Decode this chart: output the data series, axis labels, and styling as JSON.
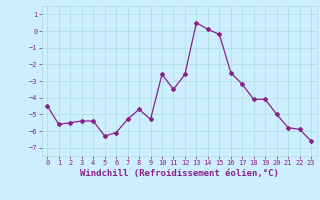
{
  "x": [
    0,
    1,
    2,
    3,
    4,
    5,
    6,
    7,
    8,
    9,
    10,
    11,
    12,
    13,
    14,
    15,
    16,
    17,
    18,
    19,
    20,
    21,
    22,
    23
  ],
  "y": [
    -4.5,
    -5.6,
    -5.5,
    -5.4,
    -5.4,
    -6.3,
    -6.1,
    -5.3,
    -4.7,
    -5.3,
    -2.6,
    -3.5,
    -2.6,
    0.5,
    0.1,
    -0.2,
    -2.5,
    -3.2,
    -4.1,
    -4.1,
    -5.0,
    -5.8,
    -5.9,
    -6.6
  ],
  "line_color": "#882288",
  "marker": "D",
  "markersize": 2.0,
  "linewidth": 0.9,
  "bg_color": "#cceeff",
  "grid_color": "#aadddd",
  "xlabel": "Windchill (Refroidissement éolien,°C)",
  "xlim": [
    -0.5,
    23.5
  ],
  "ylim": [
    -7.5,
    1.5
  ],
  "yticks": [
    1,
    0,
    -1,
    -2,
    -3,
    -4,
    -5,
    -6,
    -7
  ],
  "xticks": [
    0,
    1,
    2,
    3,
    4,
    5,
    6,
    7,
    8,
    9,
    10,
    11,
    12,
    13,
    14,
    15,
    16,
    17,
    18,
    19,
    20,
    21,
    22,
    23
  ],
  "tick_fontsize": 5.0,
  "label_fontsize": 6.5
}
